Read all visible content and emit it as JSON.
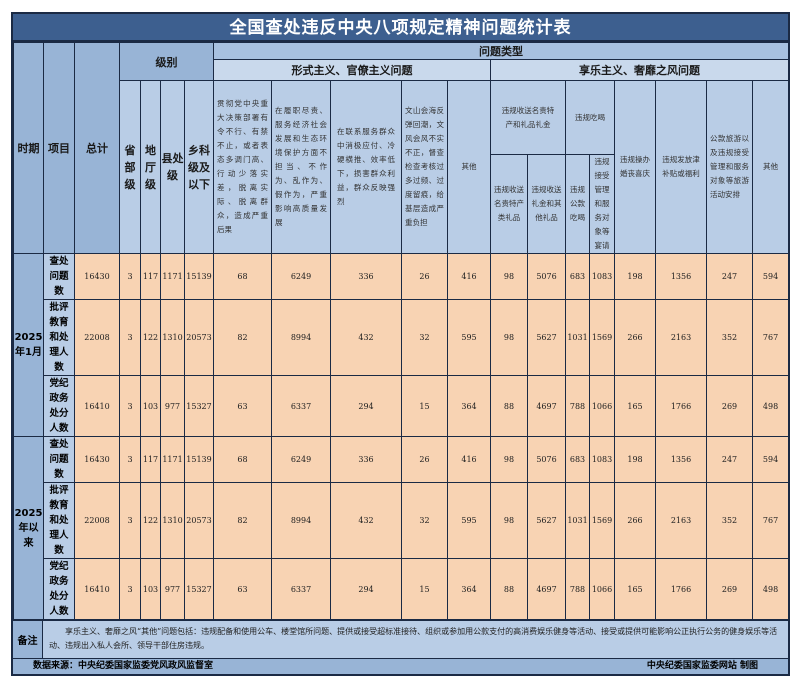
{
  "title": "全国查处违反中央八项规定精神问题统计表",
  "headers": {
    "period": "时期",
    "item": "项目",
    "total": "总计",
    "level": "级别",
    "levels": [
      "省部级",
      "地厅级",
      "县处级",
      "乡科级及以下"
    ],
    "problem_type": "问题类型",
    "formalism": "形式主义、官僚主义问题",
    "formalism_cols": [
      "贯彻党中央重大决策部署有令不行、有禁不止，或者表态多调门高、行动少落实差，脱离实际、脱离群众，造成严重后果",
      "在履职尽责、服务经济社会发展和生态环境保护方面不担当、不作为、乱作为、假作为，严重影响高质量发展",
      "在联系服务群众中消极应付、冷硬横推、效率低下，损害群众利益，群众反映强烈",
      "文山会海反弹回潮，文风会风不实不正，督查检查考核过多过频、过度留痕，给基层造成严重负担",
      "其他"
    ],
    "hedonism": "享乐主义、奢靡之风问题",
    "gifts": "违规收送名贵特产和礼品礼金",
    "gifts_cols": [
      "违规收送名贵特产类礼品",
      "违规收送礼金和其他礼品"
    ],
    "meals": "违规吃喝",
    "meals_cols": [
      "违规公款吃喝",
      "违规接受管理和服务对象等宴请"
    ],
    "hedonism_cols": [
      "违规操办婚丧喜庆",
      "违规发放津补贴或福利",
      "公款旅游以及违规接受管理和服务对象等旅游活动安排",
      "其他"
    ]
  },
  "periods": [
    {
      "label": "2025年1月",
      "rows": [
        {
          "item": "查处问题数",
          "values": [
            "16430",
            "3",
            "117",
            "1171",
            "15139",
            "68",
            "6249",
            "336",
            "26",
            "416",
            "98",
            "5076",
            "683",
            "1083",
            "198",
            "1356",
            "247",
            "594"
          ]
        },
        {
          "item": "批评教育和处理人数",
          "values": [
            "22008",
            "3",
            "122",
            "1310",
            "20573",
            "82",
            "8994",
            "432",
            "32",
            "595",
            "98",
            "5627",
            "1031",
            "1569",
            "266",
            "2163",
            "352",
            "767"
          ]
        },
        {
          "item": "党纪政务处分人数",
          "values": [
            "16410",
            "3",
            "103",
            "977",
            "15327",
            "63",
            "6337",
            "294",
            "15",
            "364",
            "88",
            "4697",
            "788",
            "1066",
            "165",
            "1766",
            "269",
            "498"
          ]
        }
      ]
    },
    {
      "label": "2025年以来",
      "rows": [
        {
          "item": "查处问题数",
          "values": [
            "16430",
            "3",
            "117",
            "1171",
            "15139",
            "68",
            "6249",
            "336",
            "26",
            "416",
            "98",
            "5076",
            "683",
            "1083",
            "198",
            "1356",
            "247",
            "594"
          ]
        },
        {
          "item": "批评教育和处理人数",
          "values": [
            "22008",
            "3",
            "122",
            "1310",
            "20573",
            "82",
            "8994",
            "432",
            "32",
            "595",
            "98",
            "5627",
            "1031",
            "1569",
            "266",
            "2163",
            "352",
            "767"
          ]
        },
        {
          "item": "党纪政务处分人数",
          "values": [
            "16410",
            "3",
            "103",
            "977",
            "15327",
            "63",
            "6337",
            "294",
            "15",
            "364",
            "88",
            "4697",
            "788",
            "1066",
            "165",
            "1766",
            "269",
            "498"
          ]
        }
      ]
    }
  ],
  "notes": {
    "label": "备注",
    "text": "享乐主义、奢靡之风“其他”问题包括：违规配备和使用公车、楼堂馆所问题、提供或接受超标准接待、组织或参加用公款支付的高消费娱乐健身等活动、接受或提供可能影响公正执行公务的健身娱乐等活动、违规出入私人会所、领导干部住房违规。"
  },
  "footer": {
    "source": "数据来源：中央纪委国家监委党风政风监督室",
    "credit": "中央纪委国家监委网站 制图"
  },
  "colors": {
    "title_bar": "#3d5f8f",
    "header": "#b9cde6",
    "header_dark": "#98b4d6",
    "data_cell": "#f8d3b3"
  }
}
